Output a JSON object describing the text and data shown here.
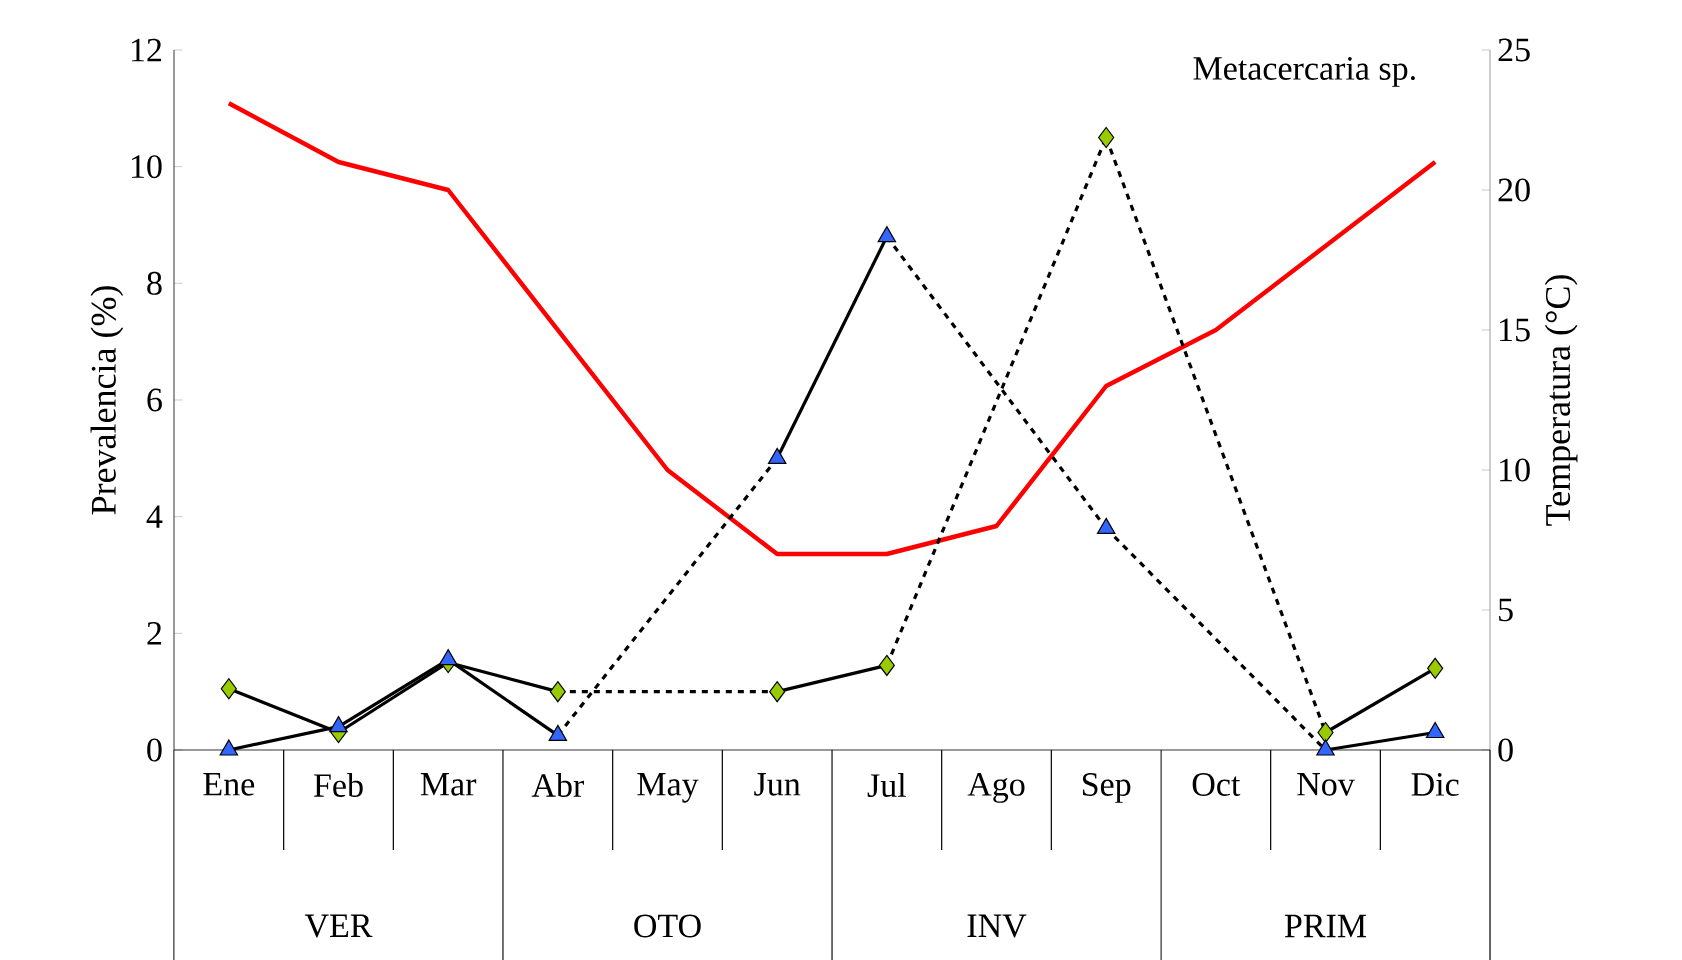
{
  "chart_data": {
    "type": "line",
    "title": "Metacercaria sp.",
    "ylabel": "Prevalencia (%)",
    "y2label": "Temperatura (°C)",
    "categories": [
      "Ene",
      "Feb",
      "Mar",
      "Abr",
      "May",
      "Jun",
      "Jul",
      "Ago",
      "Sep",
      "Oct",
      "Nov",
      "Dic"
    ],
    "annotations": [
      "VER",
      "OTO",
      "INV",
      "PRIM"
    ],
    "ylim": [
      0,
      12
    ],
    "yticks": [
      0,
      2,
      4,
      6,
      8,
      10,
      12
    ],
    "y2lim": [
      0,
      25
    ],
    "y2ticks": [
      0,
      5,
      10,
      15,
      20,
      25
    ],
    "grid": false,
    "series": [
      {
        "color": "#3366ff",
        "marker": "triangle",
        "values": [
          0,
          0.4,
          1.55,
          0.25,
          null,
          5.0,
          8.8,
          null,
          3.8,
          null,
          0,
          0.3
        ]
      },
      {
        "color": "#99cc00",
        "marker": "diamond",
        "values": [
          1.05,
          0.3,
          1.5,
          1.0,
          null,
          1.0,
          1.45,
          null,
          10.5,
          null,
          0.3,
          1.4
        ]
      },
      {
        "color": "#ff0000",
        "marker": "none",
        "axis": "y2",
        "values": [
          23.1,
          21,
          20,
          15,
          10,
          7,
          7,
          8,
          13,
          15,
          18,
          21
        ]
      }
    ]
  }
}
